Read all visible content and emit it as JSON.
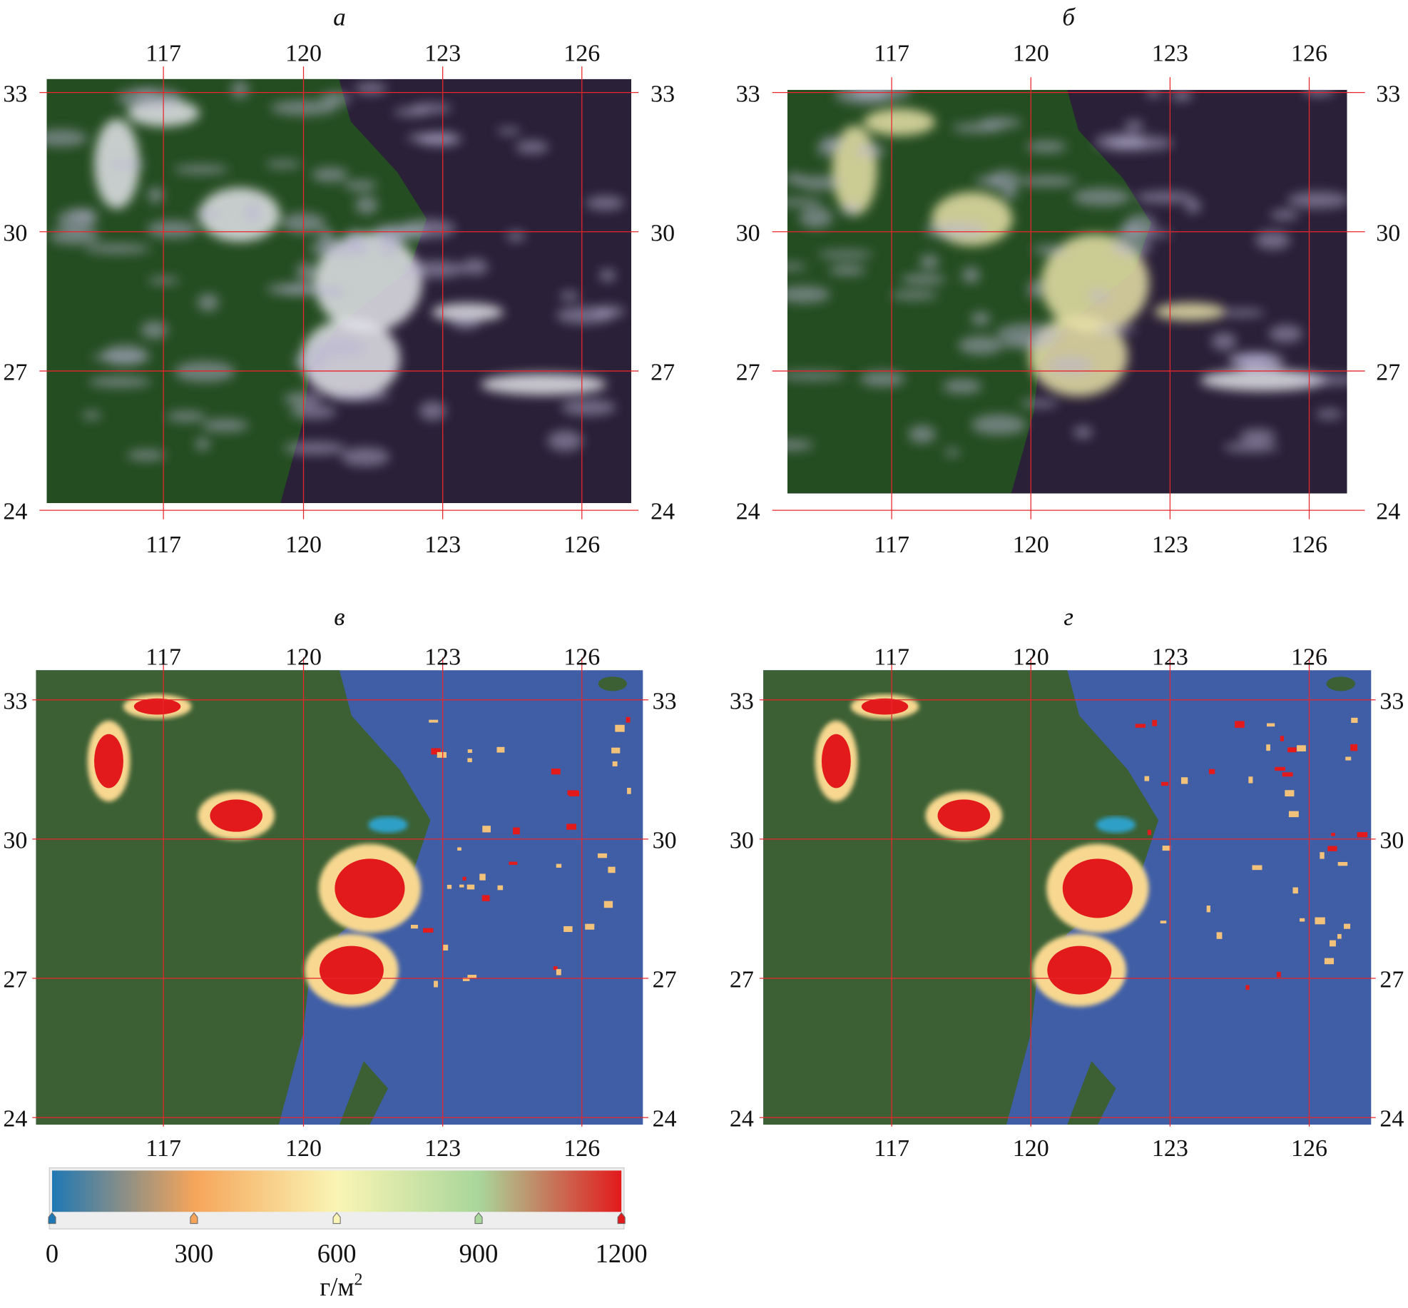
{
  "panels": [
    {
      "label": "а",
      "type": "true-color-low-res"
    },
    {
      "label": "б",
      "type": "true-color-high-res"
    },
    {
      "label": "в",
      "type": "water-path-low-res"
    },
    {
      "label": "г",
      "type": "water-path-high-res"
    }
  ],
  "lon_ticks": [
    "117",
    "120",
    "123",
    "126"
  ],
  "lat_ticks": [
    "33",
    "30",
    "27",
    "24"
  ],
  "colorbar": {
    "ticks": [
      "0",
      "300",
      "600",
      "900",
      "1200"
    ],
    "unit": "г/м",
    "unit_sup": "2",
    "range": [
      0,
      1200
    ],
    "colors": [
      "#1f78b4",
      "#f5a55a",
      "#faf5b4",
      "#a9d69b",
      "#e31a1c"
    ]
  },
  "colors": {
    "grid": "#e8262b",
    "ocean_rgb": "#2a2138",
    "ocean_map": "#3f5ea6",
    "land": "#2f5a2a"
  }
}
